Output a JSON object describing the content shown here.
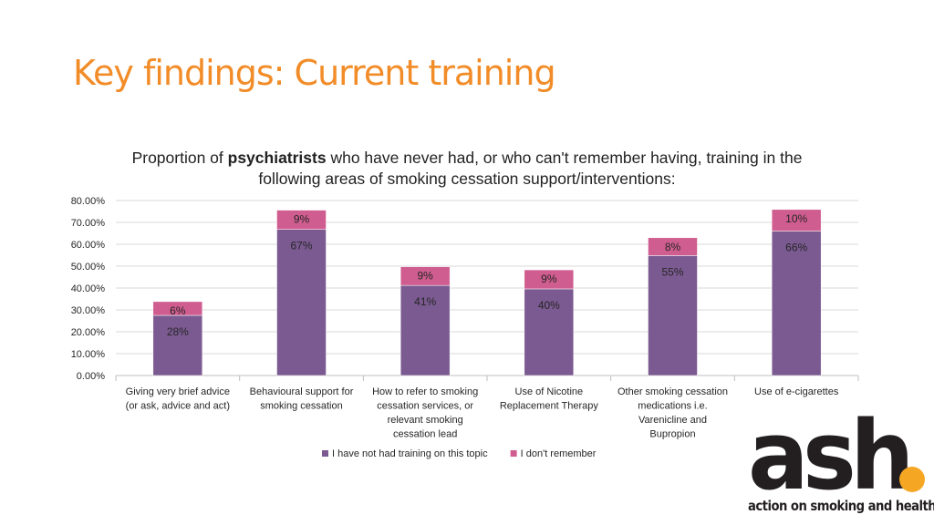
{
  "slide": {
    "title": "Key findings: Current training",
    "title_color": "#F28C28"
  },
  "chart_data": {
    "type": "bar",
    "stacked": true,
    "title_parts": {
      "before": "Proportion of ",
      "bold": "psychiatrists",
      "after": " who have never had, or who can't remember having, training in the following areas of smoking cessation support/interventions:"
    },
    "categories": [
      [
        "Giving very brief advice",
        "(or ask, advice and act)"
      ],
      [
        "Behavioural support for",
        "smoking cessation"
      ],
      [
        "How to refer to smoking",
        "cessation services, or",
        "relevant smoking",
        "cessation lead"
      ],
      [
        "Use of Nicotine",
        "Replacement Therapy"
      ],
      [
        "Other smoking cessation",
        "medications i.e.",
        "Varenicline and",
        "Bupropion"
      ],
      [
        "Use of e-cigarettes"
      ]
    ],
    "series": [
      {
        "name": "I have not had training on this topic",
        "color": "#7B5A91",
        "values": [
          27.5,
          66.8,
          41.2,
          39.6,
          54.8,
          66.0
        ],
        "labels": [
          "28%",
          "67%",
          "41%",
          "40%",
          "55%",
          "66%"
        ]
      },
      {
        "name": "I don't remember",
        "color": "#CF5D8F",
        "values": [
          6.3,
          8.8,
          8.5,
          8.7,
          8.2,
          9.9
        ],
        "labels": [
          "6%",
          "9%",
          "9%",
          "9%",
          "8%",
          "10%"
        ]
      }
    ],
    "ylim": [
      0,
      80
    ],
    "y_ticks": [
      "0.00%",
      "10.00%",
      "20.00%",
      "30.00%",
      "40.00%",
      "50.00%",
      "60.00%",
      "70.00%",
      "80.00%"
    ],
    "grid": true,
    "legend_position": "bottom",
    "grid_color": "#D9D9D9",
    "axis_color": "#BFBFBF"
  },
  "logo": {
    "mark": "ash",
    "tagline": "action on smoking and health",
    "dot_color": "#F5A623"
  }
}
